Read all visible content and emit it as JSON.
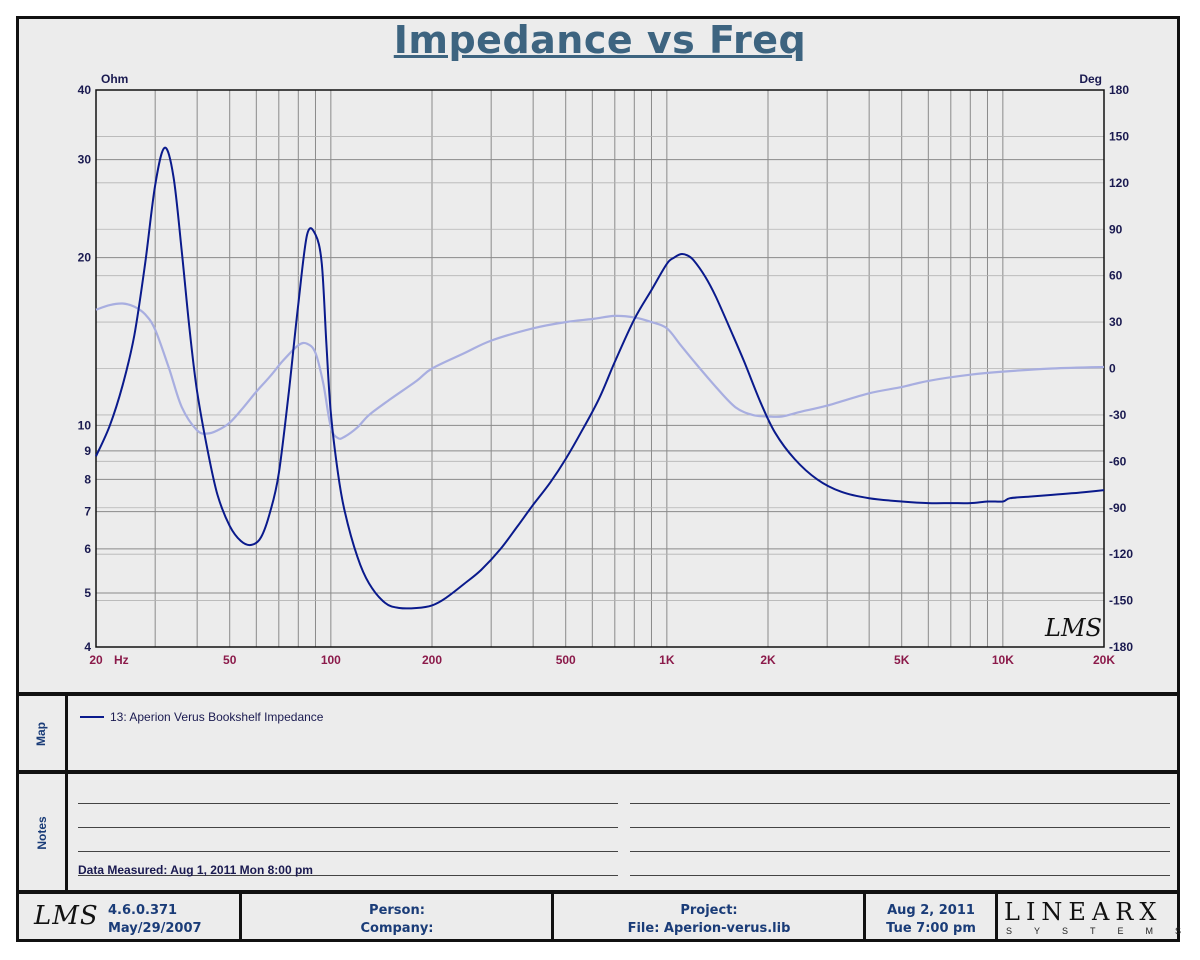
{
  "chart_data": {
    "type": "line",
    "title": "Impedance vs Freq",
    "xlabel": "Hz",
    "ylabel_left": "Ohm",
    "ylabel_right": "Deg",
    "x_scale": "log",
    "y_left_scale": "log",
    "xlim": [
      20,
      20000
    ],
    "ylim_left": [
      4,
      40
    ],
    "ylim_right": [
      -180,
      180
    ],
    "grid": true,
    "x_ticks": [
      {
        "value": 20,
        "label": "20"
      },
      {
        "value": 50,
        "label": "50"
      },
      {
        "value": 100,
        "label": "100"
      },
      {
        "value": 200,
        "label": "200"
      },
      {
        "value": 500,
        "label": "500"
      },
      {
        "value": 1000,
        "label": "1K"
      },
      {
        "value": 2000,
        "label": "2K"
      },
      {
        "value": 5000,
        "label": "5K"
      },
      {
        "value": 10000,
        "label": "10K"
      },
      {
        "value": 20000,
        "label": "20K"
      }
    ],
    "x_unit_label": "Hz",
    "y_left_ticks": [
      {
        "value": 4,
        "label": "4"
      },
      {
        "value": 5,
        "label": "5"
      },
      {
        "value": 6,
        "label": "6"
      },
      {
        "value": 7,
        "label": "7"
      },
      {
        "value": 8,
        "label": "8"
      },
      {
        "value": 9,
        "label": "9"
      },
      {
        "value": 10,
        "label": "10"
      },
      {
        "value": 20,
        "label": "20"
      },
      {
        "value": 30,
        "label": "30"
      },
      {
        "value": 40,
        "label": "40"
      }
    ],
    "y_right_ticks": [
      180,
      150,
      120,
      90,
      60,
      30,
      0,
      -30,
      -60,
      -90,
      -120,
      -150,
      -180
    ],
    "series": [
      {
        "name": "13: Aperion Verus Bookshelf Impedance",
        "axis": "left",
        "color": "#0a1a8c",
        "x": [
          20,
          22,
          24,
          26,
          28,
          30,
          32,
          34,
          36,
          38,
          40,
          43,
          46,
          50,
          54,
          58,
          62,
          66,
          70,
          75,
          80,
          85,
          90,
          94,
          97,
          100,
          105,
          110,
          120,
          130,
          145,
          160,
          180,
          200,
          220,
          250,
          280,
          320,
          360,
          400,
          450,
          500,
          560,
          630,
          700,
          800,
          900,
          1000,
          1050,
          1100,
          1150,
          1200,
          1300,
          1400,
          1550,
          1700,
          1900,
          2100,
          2400,
          2800,
          3300,
          4000,
          5000,
          6000,
          7000,
          8000,
          9000,
          10000,
          10500,
          12000,
          14000,
          16000,
          18000,
          20000
        ],
        "y": [
          8.8,
          10.0,
          11.8,
          14.5,
          19.5,
          27.0,
          31.5,
          28.0,
          20.5,
          14.8,
          11.5,
          9.0,
          7.5,
          6.6,
          6.2,
          6.1,
          6.3,
          7.0,
          8.2,
          11.5,
          16.5,
          22.0,
          22.0,
          19.5,
          14.0,
          10.5,
          8.2,
          7.0,
          5.8,
          5.2,
          4.8,
          4.7,
          4.7,
          4.75,
          4.9,
          5.2,
          5.5,
          6.0,
          6.6,
          7.2,
          7.9,
          8.7,
          9.8,
          11.2,
          13.0,
          15.5,
          17.5,
          19.5,
          20.0,
          20.3,
          20.2,
          19.8,
          18.5,
          17.0,
          14.8,
          13.0,
          11.0,
          9.7,
          8.7,
          8.0,
          7.6,
          7.4,
          7.3,
          7.25,
          7.25,
          7.25,
          7.3,
          7.3,
          7.4,
          7.45,
          7.5,
          7.55,
          7.6,
          7.65
        ]
      },
      {
        "axis": "right",
        "color": "#a8aee0",
        "x": [
          20,
          22,
          24,
          26,
          28,
          30,
          33,
          36,
          40,
          43,
          46,
          50,
          55,
          60,
          66,
          72,
          80,
          85,
          90,
          95,
          100,
          105,
          110,
          120,
          130,
          150,
          180,
          200,
          250,
          300,
          400,
          500,
          600,
          700,
          800,
          900,
          1000,
          1100,
          1200,
          1400,
          1600,
          1800,
          2000,
          2200,
          2500,
          3000,
          4000,
          5000,
          6000,
          8000,
          10000,
          14000,
          20000
        ],
        "y": [
          38,
          41,
          42,
          40,
          35,
          25,
          0,
          -25,
          -40,
          -42,
          -40,
          -35,
          -25,
          -15,
          -5,
          5,
          15,
          16,
          10,
          -10,
          -38,
          -45,
          -44,
          -38,
          -30,
          -20,
          -8,
          0,
          10,
          18,
          26,
          30,
          32,
          34,
          33,
          30,
          26,
          15,
          5,
          -12,
          -25,
          -30,
          -31,
          -31,
          -28,
          -24,
          -16,
          -12,
          -8,
          -4,
          -2,
          0,
          1
        ]
      }
    ]
  },
  "chart_watermark": "LMS",
  "map": {
    "label": "Map",
    "legend_entry": "13: Aperion Verus Bookshelf Impedance"
  },
  "notes": {
    "label": "Notes",
    "measured": "Data Measured: Aug  1, 2011  Mon  8:00 pm"
  },
  "footer": {
    "logo": "LMS",
    "version": "4.6.0.371",
    "version_date": "May/29/2007",
    "person_label": "Person:",
    "company_label": "Company:",
    "project_label": "Project:",
    "file_label": "File: Aperion-verus.lib",
    "date": "Aug  2, 2011",
    "time": "Tue  7:00 pm",
    "brand_main": "LINEARX",
    "brand_sub": "SYSTEMS"
  },
  "colors": {
    "title": "#3d6480",
    "tick_left": "#1a1a50",
    "tick_x": "#8b1a4a",
    "impedance": "#0a1a8c",
    "phase": "#a8aee0"
  }
}
